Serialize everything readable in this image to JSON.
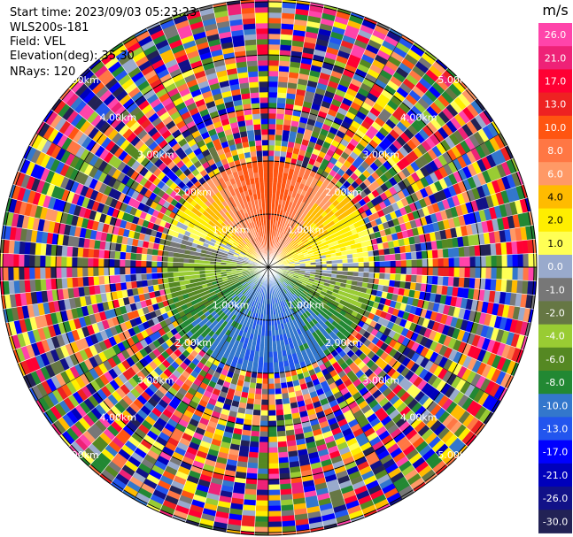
{
  "header": {
    "start_time": "Start time: 2023/09/03 05:23:23",
    "instrument": "WLS200s-181",
    "field": "Field: VEL",
    "elevation": "Elevation(deg): 35.30",
    "nrays": "NRays: 120"
  },
  "colorbar": {
    "unit": "m/s",
    "ticks": [
      "26.0",
      "21.0",
      "17.0",
      "13.0",
      "10.0",
      "8.0",
      "6.0",
      "4.0",
      "2.0",
      "1.0",
      "0.0",
      "-1.0",
      "-2.0",
      "-4.0",
      "-6.0",
      "-8.0",
      "-10.0",
      "-13.0",
      "-17.0",
      "-21.0",
      "-26.0",
      "-30.0"
    ],
    "colors": [
      "#ff44aa",
      "#ee2277",
      "#ff0033",
      "#ee2222",
      "#ff5511",
      "#ff7744",
      "#ff9966",
      "#ffbb00",
      "#ffee00",
      "#ffff55",
      "#99aacc",
      "#777777",
      "#667744",
      "#99cc33",
      "#558822",
      "#228833",
      "#3377cc",
      "#2255ee",
      "#0000ff",
      "#0000bb",
      "#111188",
      "#222255"
    ]
  },
  "chart_data": {
    "type": "ppi-polar",
    "field": "VEL",
    "unit": "m/s",
    "n_rays": 120,
    "range_rings_km": [
      1.0,
      2.0,
      3.0,
      4.0,
      5.0
    ],
    "range_ring_labels": [
      "1.00km",
      "2.00km",
      "3.00km",
      "4.00km",
      "5.00km"
    ],
    "sectors": [
      {
        "azimuth_deg": 0,
        "velocity_ms": 12
      },
      {
        "azimuth_deg": 45,
        "velocity_ms": 5
      },
      {
        "azimuth_deg": 90,
        "velocity_ms": 0.5
      },
      {
        "azimuth_deg": 135,
        "velocity_ms": -8
      },
      {
        "azimuth_deg": 180,
        "velocity_ms": -10
      },
      {
        "azimuth_deg": 225,
        "velocity_ms": -8
      },
      {
        "azimuth_deg": 270,
        "velocity_ms": -3
      },
      {
        "azimuth_deg": 315,
        "velocity_ms": 5
      }
    ],
    "valid_range_km": 2.0
  }
}
